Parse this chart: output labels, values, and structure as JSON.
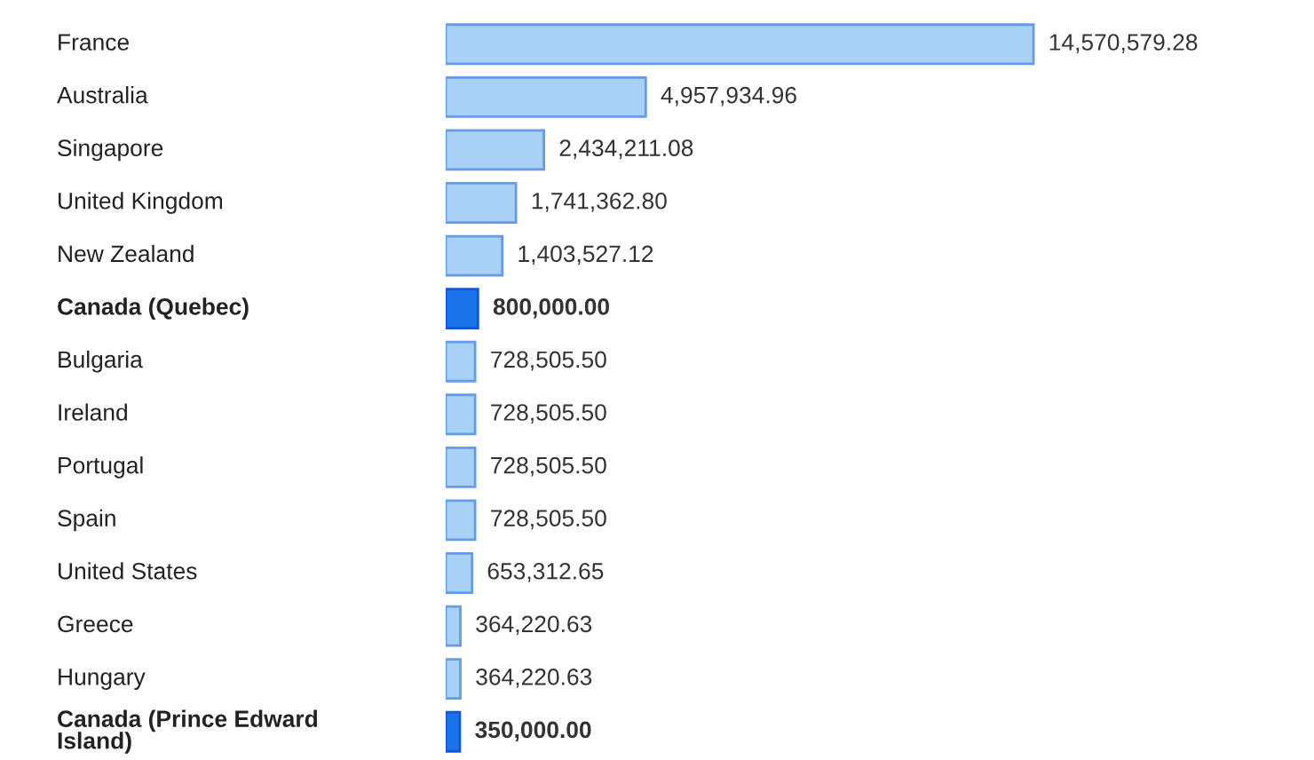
{
  "chart_data": {
    "type": "bar",
    "orientation": "horizontal",
    "value_labels": [
      "14,570,579.28",
      "4,957,934.96",
      "2,434,211.08",
      "1,741,362.80",
      "1,403,527.12",
      "800,000.00",
      "728,505.50",
      "728,505.50",
      "728,505.50",
      "728,505.50",
      "653,312.65",
      "364,220.63",
      "364,220.63",
      "350,000.00"
    ],
    "categories": [
      "France",
      "Australia",
      "Singapore",
      "United Kingdom",
      "New Zealand",
      "Canada (Quebec)",
      "Bulgaria",
      "Ireland",
      "Portugal",
      "Spain",
      "United States",
      "Greece",
      "Hungary",
      "Canada (Prince Edward Island)"
    ],
    "values": [
      14570579.28,
      4957934.96,
      2434211.08,
      1741362.8,
      1403527.12,
      800000.0,
      728505.5,
      728505.5,
      728505.5,
      728505.5,
      653312.65,
      364220.63,
      364220.63,
      350000.0
    ],
    "colors": [
      "#a9d0f5",
      "#a9d0f5",
      "#a9d0f5",
      "#a9d0f5",
      "#a9d0f5",
      "#1a73e8",
      "#a9d0f5",
      "#a9d0f5",
      "#a9d0f5",
      "#a9d0f5",
      "#a9d0f5",
      "#a9d0f5",
      "#a9d0f5",
      "#1a73e8"
    ]
  }
}
